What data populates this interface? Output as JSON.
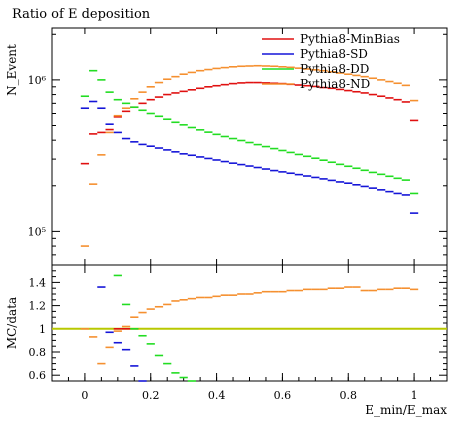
{
  "chart_data": [
    {
      "panel": "main",
      "type": "line",
      "title": "Ratio of E deposition",
      "ylabel": "N_Event",
      "yscale": "log",
      "ylim": [
        60000,
        2200000
      ],
      "yticks": [
        {
          "value": 100000,
          "label": "10⁵"
        },
        {
          "value": 1000000,
          "label": "10⁶"
        }
      ],
      "xlim": [
        -0.1,
        1.1
      ],
      "legend_position": "top-right",
      "x": [
        0.0,
        0.025,
        0.05,
        0.075,
        0.1,
        0.125,
        0.15,
        0.175,
        0.2,
        0.225,
        0.25,
        0.275,
        0.3,
        0.325,
        0.35,
        0.375,
        0.4,
        0.425,
        0.45,
        0.475,
        0.5,
        0.525,
        0.55,
        0.575,
        0.6,
        0.625,
        0.65,
        0.675,
        0.7,
        0.725,
        0.75,
        0.775,
        0.8,
        0.825,
        0.85,
        0.875,
        0.9,
        0.925,
        0.95,
        0.975,
        1.0
      ],
      "series": [
        {
          "name": "Pythia8-MinBias",
          "color": "#e01010",
          "values": [
            280000,
            440000,
            450000,
            470000,
            570000,
            620000,
            660000,
            700000,
            740000,
            770000,
            800000,
            820000,
            840000,
            860000,
            880000,
            900000,
            915000,
            930000,
            945000,
            955000,
            960000,
            960000,
            955000,
            950000,
            945000,
            935000,
            925000,
            915000,
            905000,
            890000,
            880000,
            865000,
            850000,
            835000,
            820000,
            800000,
            780000,
            760000,
            740000,
            715000,
            540000
          ]
        },
        {
          "name": "Pythia8-SD",
          "color": "#1515d8",
          "values": [
            650000,
            720000,
            650000,
            510000,
            450000,
            410000,
            390000,
            375000,
            365000,
            355000,
            345000,
            335000,
            325000,
            318000,
            310000,
            303000,
            296000,
            289000,
            282000,
            276000,
            270000,
            264000,
            258000,
            252000,
            247000,
            242000,
            237000,
            232000,
            227000,
            222000,
            217000,
            212000,
            208000,
            203000,
            198000,
            193000,
            188000,
            183000,
            178000,
            174000,
            132000
          ]
        },
        {
          "name": "Pythia8-DD",
          "color": "#22dd22",
          "values": [
            780000,
            1150000,
            1000000,
            830000,
            740000,
            700000,
            660000,
            630000,
            600000,
            575000,
            550000,
            525000,
            505000,
            485000,
            468000,
            452000,
            437000,
            423000,
            410000,
            398000,
            386000,
            374000,
            363000,
            352000,
            342000,
            332000,
            322000,
            313000,
            304000,
            295000,
            286000,
            277000,
            269000,
            261000,
            253000,
            245000,
            238000,
            231000,
            224000,
            218000,
            178000
          ]
        },
        {
          "name": "Pythia8-ND",
          "color": "#f59030",
          "values": [
            80000,
            205000,
            320000,
            450000,
            580000,
            650000,
            750000,
            830000,
            900000,
            960000,
            1010000,
            1050000,
            1090000,
            1120000,
            1150000,
            1170000,
            1190000,
            1205000,
            1220000,
            1230000,
            1235000,
            1240000,
            1235000,
            1230000,
            1220000,
            1210000,
            1195000,
            1180000,
            1165000,
            1150000,
            1130000,
            1110000,
            1090000,
            1070000,
            1050000,
            1025000,
            1000000,
            975000,
            950000,
            920000,
            730000
          ]
        }
      ]
    },
    {
      "panel": "ratio",
      "type": "line",
      "ylabel": "MC/data",
      "xlabel": "E_min/E_max",
      "ylim": [
        0.55,
        1.55
      ],
      "yticks": [
        0.6,
        0.8,
        1,
        1.2,
        1.4
      ],
      "xlim": [
        -0.1,
        1.1
      ],
      "xticks": [
        0,
        0.2,
        0.4,
        0.6,
        0.8,
        1
      ],
      "reference": {
        "value": 1,
        "color": "#b8c800"
      },
      "series": [
        {
          "name": "Pythia8-MinBias",
          "color": "#e01010",
          "x": [
            0.1,
            0.125,
            0.15
          ],
          "values": [
            1.0,
            1.0,
            1.0
          ]
        },
        {
          "name": "Pythia8-SD",
          "color": "#1515d8",
          "x": [
            0.05,
            0.075,
            0.1,
            0.125,
            0.15,
            0.175
          ],
          "values": [
            1.36,
            0.97,
            0.88,
            0.82,
            0.68,
            0.55
          ]
        },
        {
          "name": "Pythia8-DD",
          "color": "#22dd22",
          "x": [
            0.1,
            0.125,
            0.15,
            0.175,
            0.2,
            0.225,
            0.25,
            0.275,
            0.3,
            0.325
          ],
          "values": [
            1.46,
            1.21,
            1.0,
            0.94,
            0.87,
            0.77,
            0.7,
            0.62,
            0.58,
            0.55
          ]
        },
        {
          "name": "Pythia8-ND",
          "color": "#f59030",
          "x": [
            0.0,
            0.025,
            0.05,
            0.075,
            0.1,
            0.125,
            0.15,
            0.175,
            0.2,
            0.225,
            0.25,
            0.275,
            0.3,
            0.325,
            0.35,
            0.375,
            0.4,
            0.425,
            0.45,
            0.475,
            0.5,
            0.525,
            0.55,
            0.575,
            0.6,
            0.625,
            0.65,
            0.675,
            0.7,
            0.725,
            0.75,
            0.775,
            0.8,
            0.825,
            0.85,
            0.875,
            0.9,
            0.925,
            0.95,
            0.975,
            1.0
          ],
          "values": [
            1.0,
            0.93,
            0.7,
            0.84,
            0.98,
            1.02,
            1.1,
            1.14,
            1.17,
            1.19,
            1.21,
            1.24,
            1.25,
            1.26,
            1.27,
            1.27,
            1.28,
            1.29,
            1.29,
            1.3,
            1.3,
            1.31,
            1.32,
            1.32,
            1.32,
            1.33,
            1.33,
            1.34,
            1.34,
            1.34,
            1.35,
            1.35,
            1.36,
            1.36,
            1.33,
            1.33,
            1.34,
            1.34,
            1.35,
            1.35,
            1.34
          ]
        }
      ]
    }
  ]
}
